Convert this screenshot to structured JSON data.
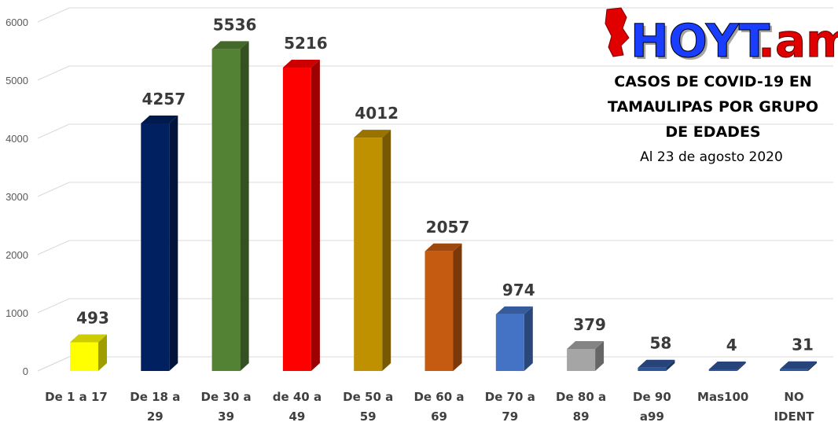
{
  "logo": {
    "main": "HOYT",
    "suffix": ".am"
  },
  "chart_data": {
    "type": "bar",
    "title_lines": [
      "CASOS DE COVID-19 EN",
      "TAMAULIPAS POR GRUPO",
      "DE EDADES"
    ],
    "subtitle": "Al 23 de agosto 2020",
    "categories": [
      [
        "De 1 a 17"
      ],
      [
        "De 18 a",
        "29"
      ],
      [
        "De 30 a",
        "39"
      ],
      [
        "de 40 a",
        "49"
      ],
      [
        "De 50 a",
        "59"
      ],
      [
        "De 60 a",
        "69"
      ],
      [
        "De 70 a",
        "79"
      ],
      [
        "De 80 a",
        "89"
      ],
      [
        "De 90",
        "a99"
      ],
      [
        "Mas100"
      ],
      [
        "NO",
        "IDENT"
      ]
    ],
    "values": [
      493,
      4257,
      5536,
      5216,
      4012,
      2057,
      974,
      379,
      58,
      4,
      31
    ],
    "data_labels": [
      "493",
      "4257",
      "5536",
      "5216",
      "4012",
      "2057",
      "974",
      "379",
      "58",
      "4",
      "31"
    ],
    "colors": [
      "#ffff00",
      "#002060",
      "#548235",
      "#ff0000",
      "#bf9000",
      "#c55a11",
      "#4472c4",
      "#a5a5a5",
      "#2f5597",
      "#2f5597",
      "#2f5597"
    ],
    "ylim": [
      0,
      6000
    ],
    "yticks": [
      0,
      1000,
      2000,
      3000,
      4000,
      5000,
      6000
    ],
    "grid": true,
    "style": "3d-column"
  }
}
